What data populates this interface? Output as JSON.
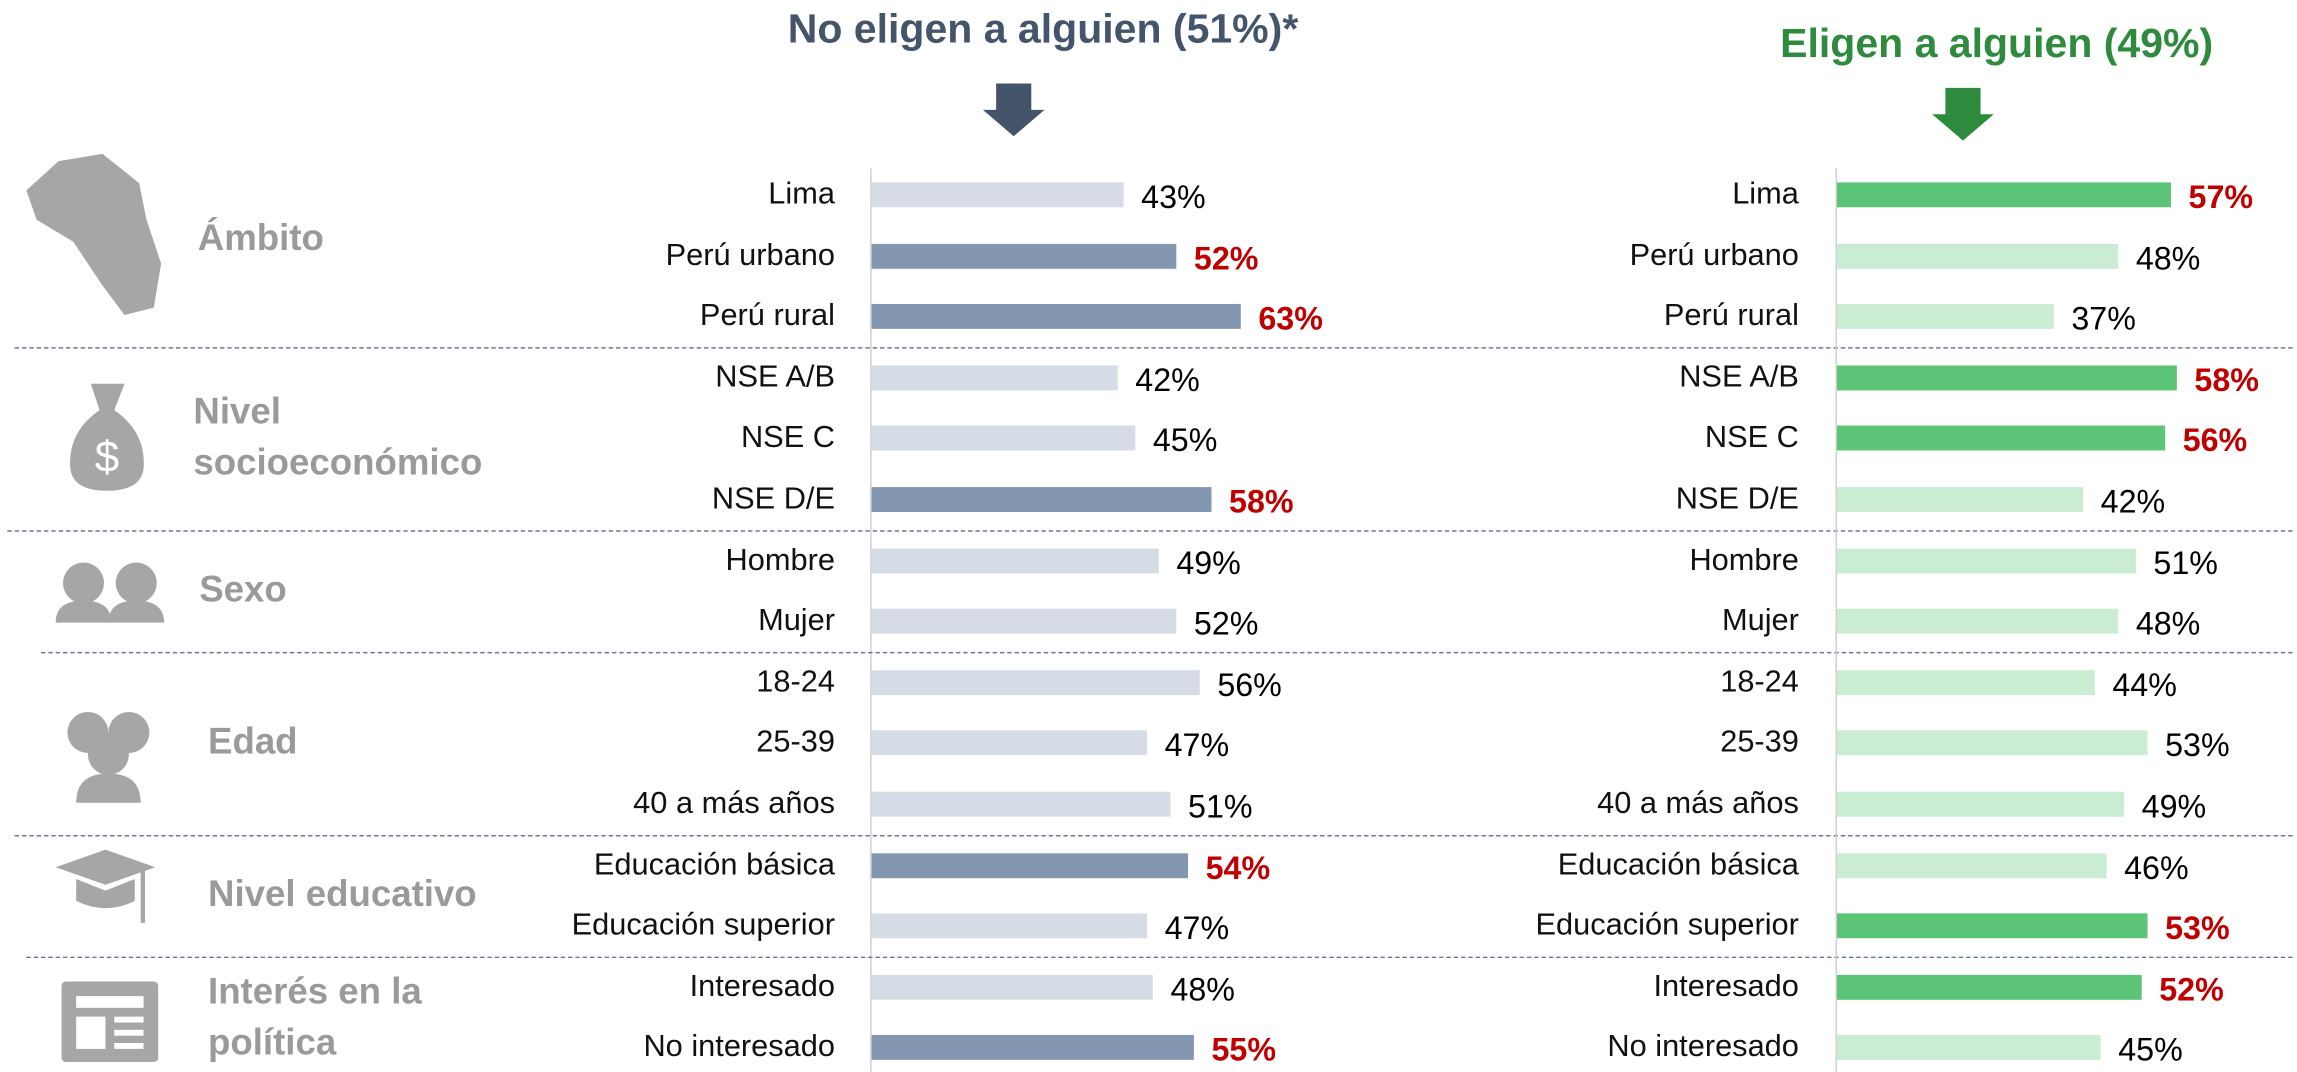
{
  "group_labels": [
    "Ámbito",
    "Nivel socioeconómico",
    "Sexo",
    "Edad",
    "Nivel educativo",
    "Interés en la política"
  ],
  "chart_data": [
    {
      "type": "bar",
      "orientation": "horizontal",
      "title": "No eligen a alguien (51%)*",
      "title_color": "#44546a",
      "color": "#d6dce5",
      "highlight_color": "#8497b0",
      "groups": [
        {
          "categories": [
            "Lima",
            "Perú urbano",
            "Perú rural"
          ],
          "values": [
            43,
            52,
            63
          ],
          "value_labels": [
            "43%",
            "52%",
            "63%"
          ],
          "highlighted": [
            false,
            true,
            true
          ]
        },
        {
          "categories": [
            "NSE A/B",
            "NSE C",
            "NSE D/E"
          ],
          "values": [
            42,
            45,
            58
          ],
          "value_labels": [
            "42%",
            "45%",
            "58%"
          ],
          "highlighted": [
            false,
            false,
            true
          ]
        },
        {
          "categories": [
            "Hombre",
            "Mujer"
          ],
          "values": [
            49,
            52
          ],
          "value_labels": [
            "49%",
            "52%"
          ],
          "highlighted": [
            false,
            false
          ]
        },
        {
          "categories": [
            "18-24",
            "25-39",
            "40 a más años"
          ],
          "values": [
            56,
            47,
            51
          ],
          "value_labels": [
            "56%",
            "47%",
            "51%"
          ],
          "highlighted": [
            false,
            false,
            false
          ]
        },
        {
          "categories": [
            "Educación básica",
            "Educación superior"
          ],
          "values": [
            54,
            47
          ],
          "value_labels": [
            "54%",
            "47%"
          ],
          "highlighted": [
            true,
            false
          ]
        },
        {
          "categories": [
            "Interesado",
            "No interesado"
          ],
          "values": [
            48,
            55
          ],
          "value_labels": [
            "48%",
            "55%"
          ],
          "highlighted": [
            false,
            true
          ]
        }
      ]
    },
    {
      "type": "bar",
      "orientation": "horizontal",
      "title": "Eligen a alguien (49%)",
      "title_color": "#2e8b3e",
      "color": "#c9ecd3",
      "highlight_color": "#5cc476",
      "groups": [
        {
          "categories": [
            "Lima",
            "Perú urbano",
            "Perú rural"
          ],
          "values": [
            57,
            48,
            37
          ],
          "value_labels": [
            "57%",
            "48%",
            "37%"
          ],
          "highlighted": [
            true,
            false,
            false
          ]
        },
        {
          "categories": [
            "NSE A/B",
            "NSE C",
            "NSE D/E"
          ],
          "values": [
            58,
            56,
            42
          ],
          "value_labels": [
            "58%",
            "56%",
            "42%"
          ],
          "highlighted": [
            true,
            true,
            false
          ]
        },
        {
          "categories": [
            "Hombre",
            "Mujer"
          ],
          "values": [
            51,
            48
          ],
          "value_labels": [
            "51%",
            "48%"
          ],
          "highlighted": [
            false,
            false
          ]
        },
        {
          "categories": [
            "18-24",
            "25-39",
            "40 a más años"
          ],
          "values": [
            44,
            53,
            49
          ],
          "value_labels": [
            "44%",
            "53%",
            "49%"
          ],
          "highlighted": [
            false,
            false,
            false
          ]
        },
        {
          "categories": [
            "Educación básica",
            "Educación superior"
          ],
          "values": [
            46,
            53
          ],
          "value_labels": [
            "46%",
            "53%"
          ],
          "highlighted": [
            false,
            true
          ]
        },
        {
          "categories": [
            "Interesado",
            "No interesado"
          ],
          "values": [
            52,
            45
          ],
          "value_labels": [
            "52%",
            "45%"
          ],
          "highlighted": [
            true,
            false
          ]
        }
      ]
    }
  ]
}
